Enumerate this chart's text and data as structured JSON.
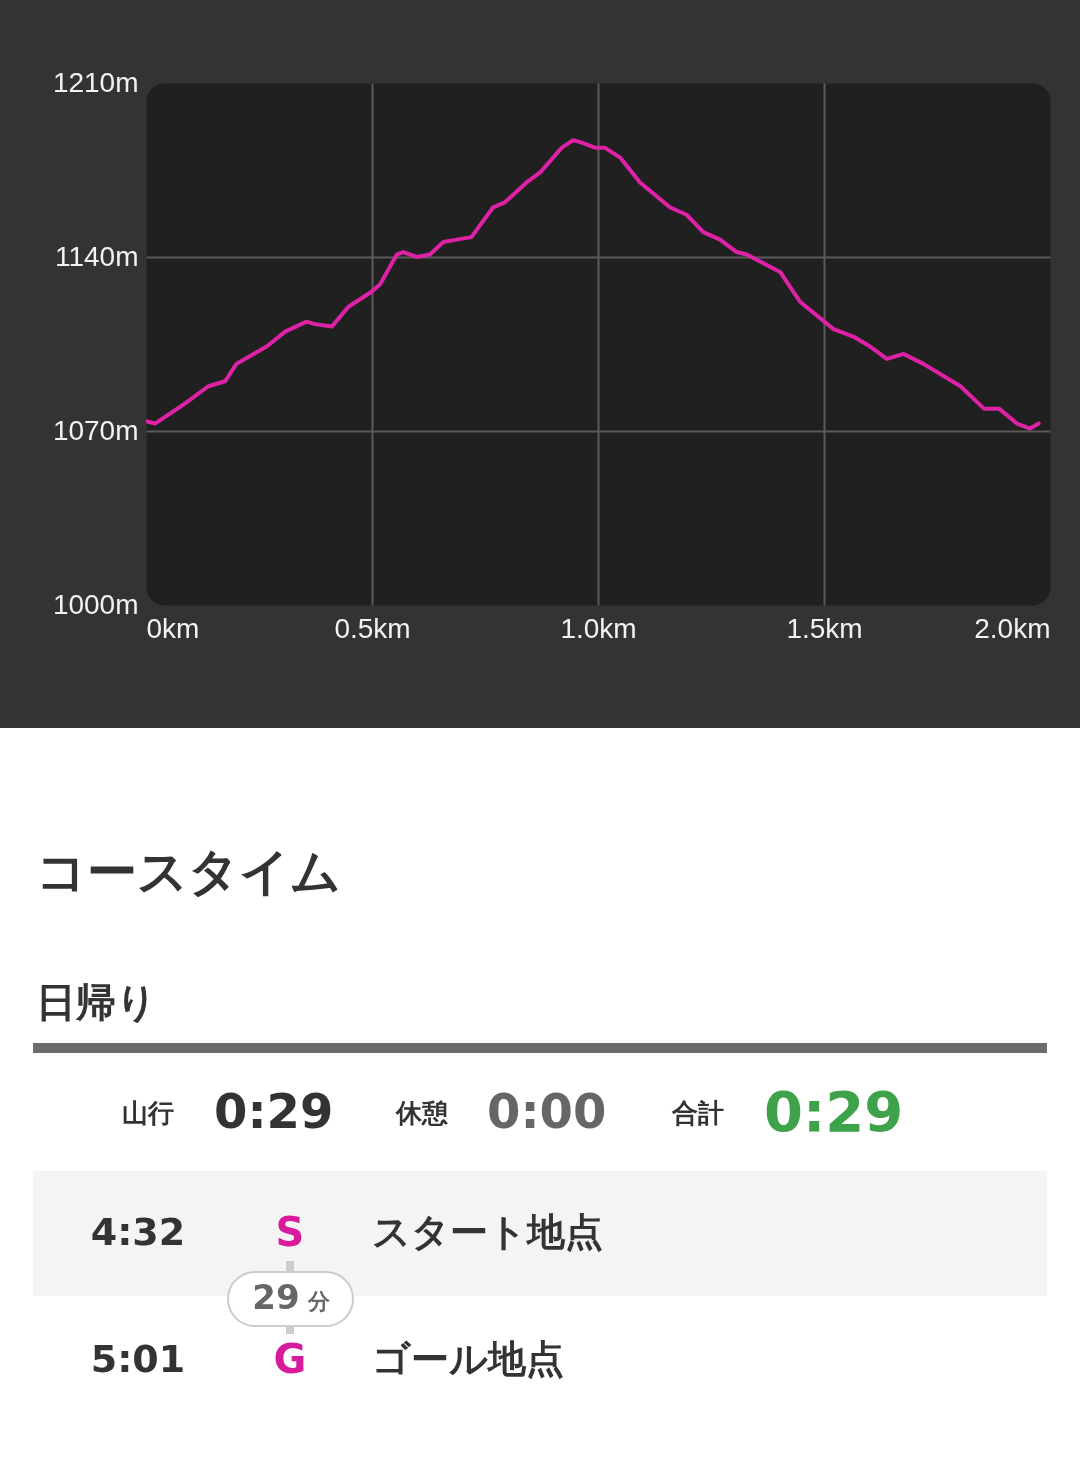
{
  "chart_data": [
    {
      "type": "line",
      "x": [
        0,
        0.02,
        0.053,
        0.086,
        0.138,
        0.175,
        0.2,
        0.267,
        0.308,
        0.355,
        0.374,
        0.411,
        0.448,
        0.499,
        0.518,
        0.555,
        0.569,
        0.599,
        0.628,
        0.658,
        0.687,
        0.72,
        0.768,
        0.794,
        0.842,
        0.872,
        0.92,
        0.945,
        0.964,
        0.993,
        1.015,
        1.049,
        1.093,
        1.159,
        1.196,
        1.233,
        1.27,
        1.307,
        1.329,
        1.403,
        1.447,
        1.521,
        1.565,
        1.602,
        1.639,
        1.676,
        1.72,
        1.802,
        1.854,
        1.887,
        1.927,
        1.956,
        1.975
      ],
      "values": [
        1074,
        1073,
        1077,
        1081,
        1088,
        1090,
        1097,
        1104,
        1110,
        1114,
        1113,
        1112,
        1120,
        1126,
        1129,
        1141,
        1142,
        1140,
        1141,
        1146,
        1147,
        1148,
        1160,
        1162,
        1170,
        1174,
        1184,
        1187,
        1186,
        1184,
        1184,
        1180,
        1170,
        1160,
        1157,
        1150,
        1147,
        1142,
        1141,
        1134,
        1122,
        1111,
        1108,
        1104,
        1099,
        1101,
        1097,
        1088,
        1079,
        1079,
        1073,
        1071,
        1073
      ],
      "color": "#dd22a5",
      "xlim": [
        0,
        2.0
      ],
      "ylim": [
        1000,
        1210
      ],
      "xticks": [
        {
          "value": 0,
          "label": "0km"
        },
        {
          "value": 0.5,
          "label": "0.5km"
        },
        {
          "value": 1.0,
          "label": "1.0km"
        },
        {
          "value": 1.5,
          "label": "1.5km"
        },
        {
          "value": 2.0,
          "label": "2.0km"
        }
      ],
      "yticks": [
        {
          "value": 1000,
          "label": "1000m"
        },
        {
          "value": 1070,
          "label": "1070m"
        },
        {
          "value": 1140,
          "label": "1140m"
        },
        {
          "value": 1210,
          "label": "1210m"
        }
      ],
      "grid": true,
      "line_style": "solid"
    },
    {
      "type": "other",
      "title": "コースタイム",
      "subtitle": "日帰り",
      "annotations": [
        "山行",
        "0:29",
        "休憩",
        "0:00",
        "合計",
        "0:29",
        "4:32",
        "S",
        "スタート地点",
        "29",
        "分",
        "5:01",
        "G",
        "ゴール地点"
      ]
    }
  ]
}
